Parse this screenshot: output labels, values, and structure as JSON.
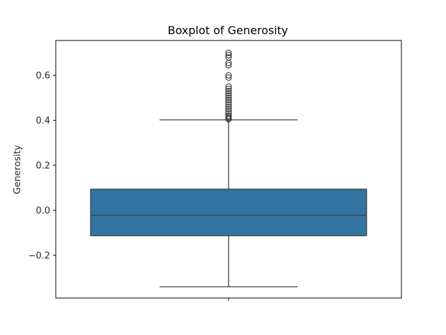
{
  "chart_data": {
    "type": "boxplot",
    "title": "Boxplot of Generosity",
    "xlabel": "",
    "ylabel": "Generosity",
    "ylim": [
      -0.39,
      0.755
    ],
    "yticks": [
      -0.2,
      0.0,
      0.2,
      0.4,
      0.6
    ],
    "ytick_labels": [
      "−0.2",
      "0.0",
      "0.2",
      "0.4",
      "0.6"
    ],
    "grid": false,
    "box": {
      "whisker_low": -0.34,
      "q1": -0.113,
      "median": -0.022,
      "q3": 0.094,
      "whisker_high": 0.402
    },
    "outliers": [
      0.405,
      0.41,
      0.415,
      0.42,
      0.43,
      0.44,
      0.45,
      0.46,
      0.47,
      0.48,
      0.49,
      0.5,
      0.51,
      0.52,
      0.53,
      0.54,
      0.55,
      0.59,
      0.6,
      0.645,
      0.655,
      0.68,
      0.69,
      0.7
    ],
    "colors": {
      "box_fill": "#3274a1",
      "line": "#3f3f3f",
      "frame": "#000000"
    }
  }
}
